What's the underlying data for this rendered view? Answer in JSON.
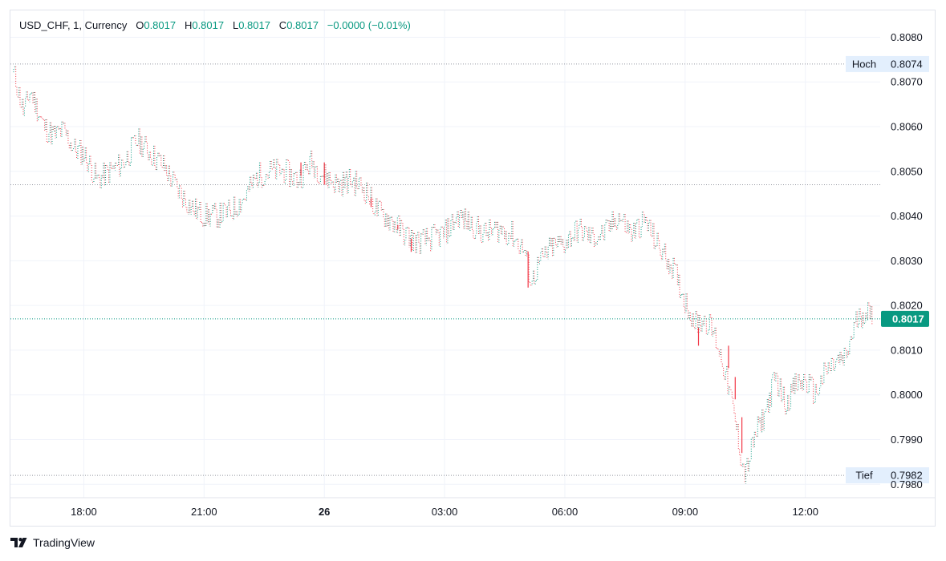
{
  "header": {
    "symbol": "USD_CHF, 1, Currency",
    "open_label": "O",
    "open": "0.8017",
    "high_label": "H",
    "high": "0.8017",
    "low_label": "L",
    "low": "0.8017",
    "close_label": "C",
    "close": "0.8017",
    "change": "−0.0000 (−0.01%)"
  },
  "brand": {
    "name": "TradingView",
    "logo_icon": "tradingview-logo-icon"
  },
  "colors": {
    "up": "#089981",
    "down": "#f23645",
    "grid": "#f0f3fa",
    "axis_text": "#131722",
    "price_tag_bg": "#089981",
    "hilo_tag_bg": "#e3effd"
  },
  "chart_data": {
    "type": "candlestick",
    "interval": "1 minute",
    "xlim": [
      "16:15",
      "13:40"
    ],
    "ylim": [
      0.7977,
      0.8086
    ],
    "y_ticks": [
      "0.8080",
      "0.8070",
      "0.8060",
      "0.8050",
      "0.8040",
      "0.8030",
      "0.8020",
      "0.8010",
      "0.8000",
      "0.7990",
      "0.7980"
    ],
    "x_ticks": [
      {
        "time": "18:00",
        "label": "18:00",
        "bold": false
      },
      {
        "time": "21:00",
        "label": "21:00",
        "bold": false
      },
      {
        "time": "00:00",
        "label": "26",
        "bold": true
      },
      {
        "time": "03:00",
        "label": "03:00",
        "bold": false
      },
      {
        "time": "06:00",
        "label": "06:00",
        "bold": false
      },
      {
        "time": "09:00",
        "label": "09:00",
        "bold": false
      },
      {
        "time": "12:00",
        "label": "12:00",
        "bold": false
      }
    ],
    "price_path": [
      [
        "16:15",
        0.8072
      ],
      [
        "16:20",
        0.8069
      ],
      [
        "16:30",
        0.8063
      ],
      [
        "16:40",
        0.8068
      ],
      [
        "16:50",
        0.8064
      ],
      [
        "17:00",
        0.806
      ],
      [
        "17:15",
        0.8058
      ],
      [
        "17:30",
        0.8059
      ],
      [
        "17:45",
        0.8055
      ],
      [
        "18:00",
        0.8054
      ],
      [
        "18:20",
        0.8048
      ],
      [
        "18:40",
        0.805
      ],
      [
        "19:00",
        0.8052
      ],
      [
        "19:20",
        0.8057
      ],
      [
        "19:40",
        0.8054
      ],
      [
        "20:00",
        0.8051
      ],
      [
        "20:20",
        0.8046
      ],
      [
        "20:40",
        0.8042
      ],
      [
        "21:00",
        0.804
      ],
      [
        "21:20",
        0.804
      ],
      [
        "21:40",
        0.8041
      ],
      [
        "22:00",
        0.8044
      ],
      [
        "22:20",
        0.8049
      ],
      [
        "22:40",
        0.805
      ],
      [
        "23:00",
        0.805
      ],
      [
        "23:20",
        0.8048
      ],
      [
        "23:40",
        0.8052
      ],
      [
        "00:00",
        0.8049
      ],
      [
        "00:20",
        0.8047
      ],
      [
        "00:40",
        0.8048
      ],
      [
        "01:00",
        0.8046
      ],
      [
        "01:20",
        0.8041
      ],
      [
        "01:40",
        0.8039
      ],
      [
        "02:00",
        0.8036
      ],
      [
        "02:20",
        0.8034
      ],
      [
        "02:40",
        0.8035
      ],
      [
        "03:00",
        0.8036
      ],
      [
        "03:20",
        0.804
      ],
      [
        "03:40",
        0.8038
      ],
      [
        "04:00",
        0.8036
      ],
      [
        "04:20",
        0.8037
      ],
      [
        "04:40",
        0.8036
      ],
      [
        "05:00",
        0.8032
      ],
      [
        "05:10",
        0.8025
      ],
      [
        "05:20",
        0.8029
      ],
      [
        "05:40",
        0.8033
      ],
      [
        "06:00",
        0.8034
      ],
      [
        "06:20",
        0.8037
      ],
      [
        "06:40",
        0.8035
      ],
      [
        "07:00",
        0.8036
      ],
      [
        "07:20",
        0.804
      ],
      [
        "07:40",
        0.8036
      ],
      [
        "08:00",
        0.8039
      ],
      [
        "08:20",
        0.8033
      ],
      [
        "08:40",
        0.8029
      ],
      [
        "09:00",
        0.8021
      ],
      [
        "09:15",
        0.8016
      ],
      [
        "09:30",
        0.8017
      ],
      [
        "09:45",
        0.8013
      ],
      [
        "10:00",
        0.8005
      ],
      [
        "10:15",
        0.7994
      ],
      [
        "10:25",
        0.7985
      ],
      [
        "10:30",
        0.7982
      ],
      [
        "10:45",
        0.7991
      ],
      [
        "11:00",
        0.7996
      ],
      [
        "11:15",
        0.8004
      ],
      [
        "11:30",
        0.7998
      ],
      [
        "11:45",
        0.8002
      ],
      [
        "12:00",
        0.8003
      ],
      [
        "12:15",
        0.8
      ],
      [
        "12:30",
        0.8005
      ],
      [
        "12:45",
        0.8007
      ],
      [
        "13:00",
        0.8008
      ],
      [
        "13:15",
        0.8016
      ],
      [
        "13:30",
        0.8019
      ],
      [
        "13:40",
        0.8017
      ]
    ],
    "notable_down_candles": [
      {
        "time": "23:25",
        "high": 0.8052,
        "low": 0.8049
      },
      {
        "time": "00:00",
        "high": 0.8052,
        "low": 0.8047
      },
      {
        "time": "01:10",
        "high": 0.8044,
        "low": 0.8042
      },
      {
        "time": "01:50",
        "high": 0.8038,
        "low": 0.8037
      },
      {
        "time": "02:10",
        "high": 0.8035,
        "low": 0.8032
      },
      {
        "time": "05:05",
        "high": 0.8032,
        "low": 0.8024
      },
      {
        "time": "09:20",
        "high": 0.8015,
        "low": 0.8011
      },
      {
        "time": "10:05",
        "high": 0.8011,
        "low": 0.8006
      },
      {
        "time": "10:15",
        "high": 0.8004,
        "low": 0.7999
      },
      {
        "time": "10:25",
        "high": 0.7995,
        "low": 0.7987
      }
    ],
    "horizontal_lines": [
      {
        "name": "high",
        "value": 0.8074,
        "label": "Hoch",
        "value_label": "0.8074"
      },
      {
        "name": "session-open",
        "value": 0.8047
      },
      {
        "name": "current",
        "value": 0.8017,
        "value_label": "0.8017"
      },
      {
        "name": "low",
        "value": 0.7982,
        "label": "Tief",
        "value_label": "0.7982"
      }
    ]
  }
}
